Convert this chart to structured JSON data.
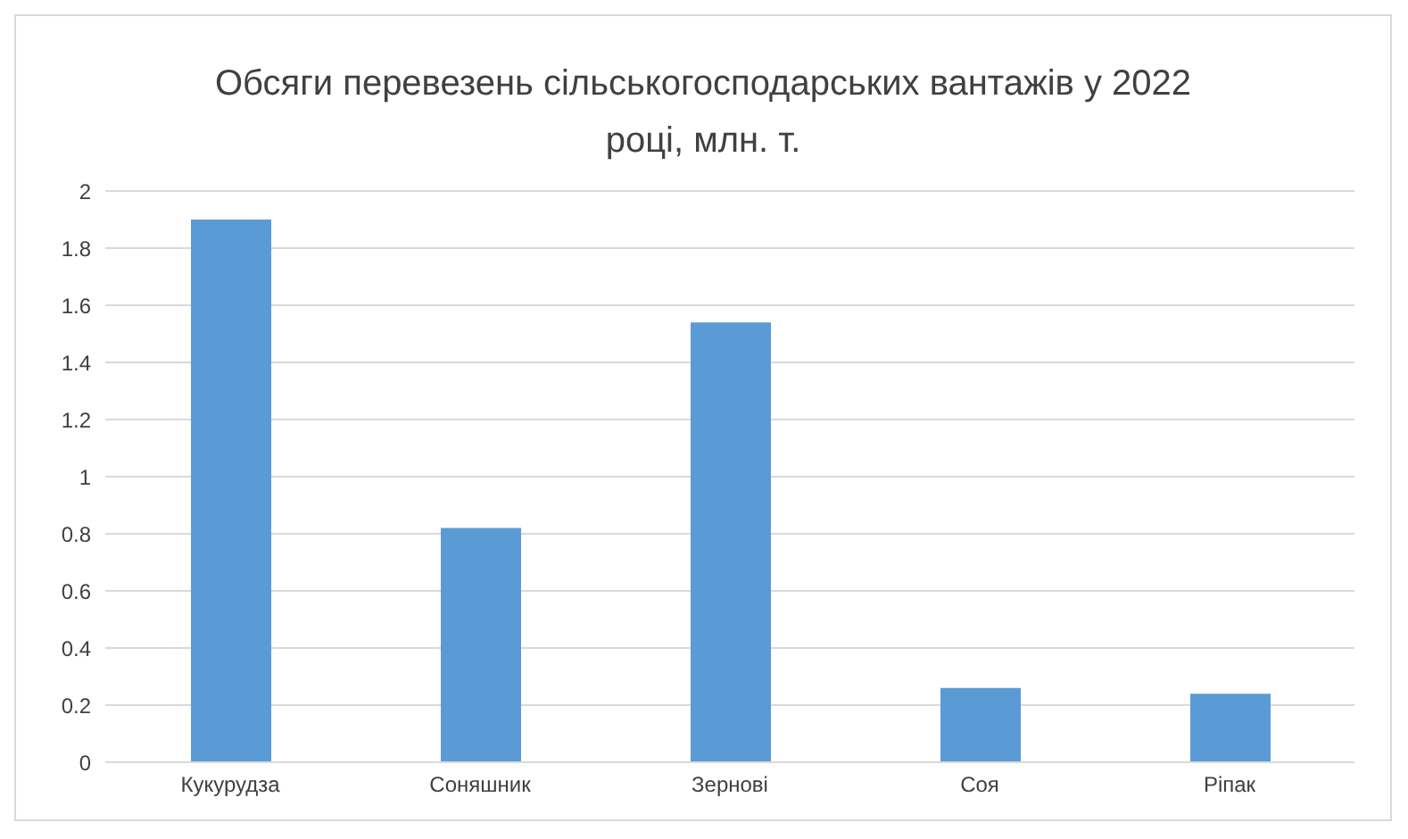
{
  "chart_data": {
    "type": "bar",
    "title": "Обсяги перевезень сільськогосподарських вантажів у 2022 році, млн. т.",
    "categories": [
      "Кукурудза",
      "Соняшник",
      "Зернові",
      "Соя",
      "Ріпак"
    ],
    "values": [
      1.9,
      0.82,
      1.54,
      0.26,
      0.24
    ],
    "color": "#5b9bd5",
    "ylim": [
      0,
      2
    ],
    "yticks": [
      0,
      0.2,
      0.4,
      0.6,
      0.8,
      1,
      1.2,
      1.4,
      1.6,
      1.8,
      2
    ],
    "grid": "y",
    "legend": false
  }
}
